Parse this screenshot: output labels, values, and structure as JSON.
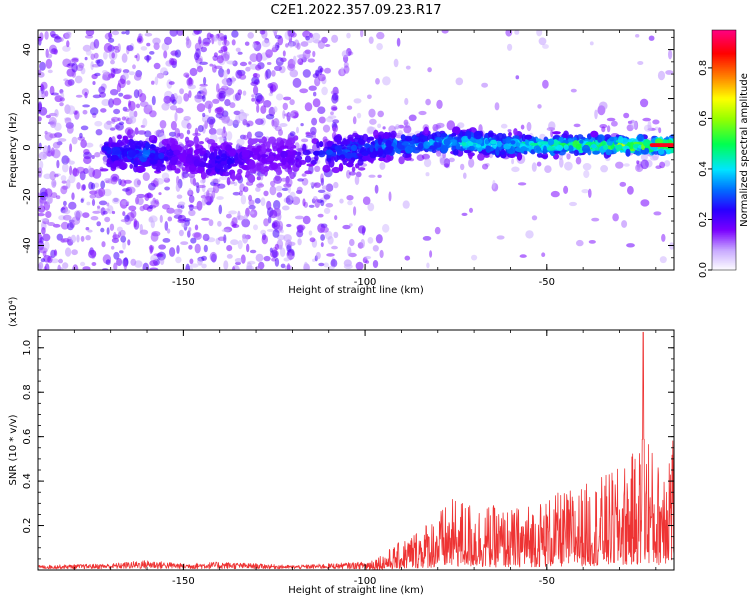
{
  "title": "C2E1.2022.357.09.23.R17",
  "colors": {
    "snr_line": "#ee3333",
    "colormap": [
      "#ffffff",
      "#7a00ff",
      "#0000ff",
      "#00e5ff",
      "#00ff00",
      "#ffff00",
      "#ff8c00",
      "#ff0000",
      "#ff0080"
    ]
  },
  "chart_data": [
    {
      "type": "heatmap",
      "xlabel": "Height of straight line (km)",
      "ylabel": "Frequency (Hz)",
      "xlim": [
        -190,
        -15
      ],
      "ylim": [
        -50,
        48
      ],
      "x_ticks": [
        -150,
        -100,
        -50
      ],
      "x_tick_labels": [
        "-150",
        "-100",
        "-50"
      ],
      "y_ticks": [
        -40,
        -20,
        0,
        20,
        40
      ],
      "y_tick_labels": [
        "-40",
        "-20",
        "0",
        "20",
        "40"
      ],
      "colorbar": {
        "label": "Normalized spectral amplitude",
        "range": [
          0,
          0.95
        ],
        "ticks": [
          0.0,
          0.2,
          0.4,
          0.6,
          0.8
        ],
        "tick_labels": [
          "0.0",
          "0.2",
          "0.4",
          "0.6",
          "0.8"
        ]
      },
      "ridge": {
        "x": [
          -170,
          -160,
          -150,
          -140,
          -130,
          -120,
          -110,
          -100,
          -90,
          -80,
          -70,
          -60,
          -50,
          -40,
          -30,
          -20,
          -15
        ],
        "center_freq": [
          -2,
          -3,
          -4,
          -6,
          -4,
          -3,
          -2,
          0,
          1,
          2,
          2,
          1,
          1,
          1,
          1,
          1,
          1
        ],
        "peak_amplitude": [
          0.28,
          0.35,
          0.18,
          0.28,
          0.18,
          0.2,
          0.3,
          0.35,
          0.4,
          0.42,
          0.5,
          0.48,
          0.55,
          0.6,
          0.65,
          0.7,
          0.85
        ]
      }
    },
    {
      "type": "line",
      "xlabel": "Height of straight line (km)",
      "ylabel": "SNR (10 * v/v)",
      "y_multiplier": "(x10⁴)",
      "xlim": [
        -190,
        -15
      ],
      "ylim": [
        0,
        1.08
      ],
      "x_ticks": [
        -150,
        -100,
        -50
      ],
      "x_tick_labels": [
        "-150",
        "-100",
        "-50"
      ],
      "y_ticks": [
        0.2,
        0.4,
        0.6,
        0.8,
        1.0
      ],
      "y_tick_labels": [
        "0.2",
        "0.4",
        "0.6",
        "0.8",
        "1.0"
      ],
      "envelope": {
        "x": [
          -190,
          -170,
          -160,
          -150,
          -140,
          -120,
          -110,
          -100,
          -95,
          -90,
          -85,
          -80,
          -75,
          -70,
          -60,
          -50,
          -40,
          -30,
          -25,
          -22,
          -20,
          -18,
          -16,
          -15
        ],
        "y": [
          0.02,
          0.03,
          0.05,
          0.03,
          0.04,
          0.02,
          0.03,
          0.04,
          0.07,
          0.12,
          0.18,
          0.24,
          0.3,
          0.28,
          0.25,
          0.3,
          0.35,
          0.42,
          0.5,
          0.6,
          0.4,
          0.55,
          0.65,
          0.6
        ]
      },
      "peak": {
        "x": -23.5,
        "y": 1.07
      }
    }
  ]
}
